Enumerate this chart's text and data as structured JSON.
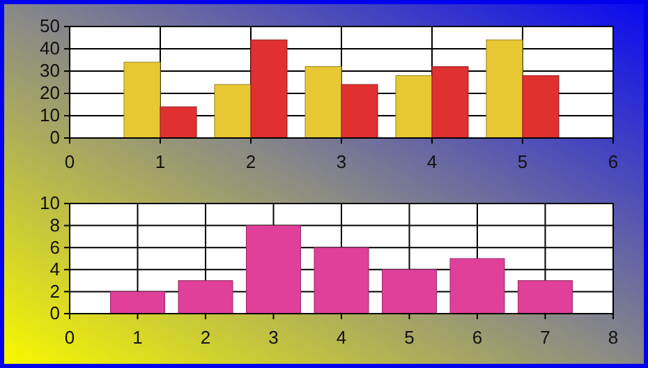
{
  "chart_data": [
    {
      "type": "bar",
      "x": [
        1,
        2,
        3,
        4,
        5
      ],
      "xlim": [
        0,
        6
      ],
      "xticks": [
        0,
        1,
        2,
        3,
        4,
        5,
        6
      ],
      "ylim": [
        0,
        50
      ],
      "yticks": [
        0,
        10,
        20,
        30,
        40,
        50
      ],
      "grid": true,
      "series": [
        {
          "color": "#e8c832",
          "values": [
            34,
            24,
            32,
            28,
            44
          ]
        },
        {
          "color": "#e03030",
          "values": [
            14,
            44,
            24,
            32,
            28
          ]
        }
      ]
    },
    {
      "type": "bar",
      "x": [
        1,
        2,
        3,
        4,
        5,
        6,
        7
      ],
      "xlim": [
        0,
        8
      ],
      "xticks": [
        0,
        1,
        2,
        3,
        4,
        5,
        6,
        7,
        8
      ],
      "ylim": [
        0,
        10
      ],
      "yticks": [
        0,
        2,
        4,
        6,
        8,
        10
      ],
      "grid": true,
      "series": [
        {
          "color": "#e0409a",
          "values": [
            2,
            3,
            8,
            6,
            4,
            5,
            3
          ]
        }
      ]
    }
  ]
}
